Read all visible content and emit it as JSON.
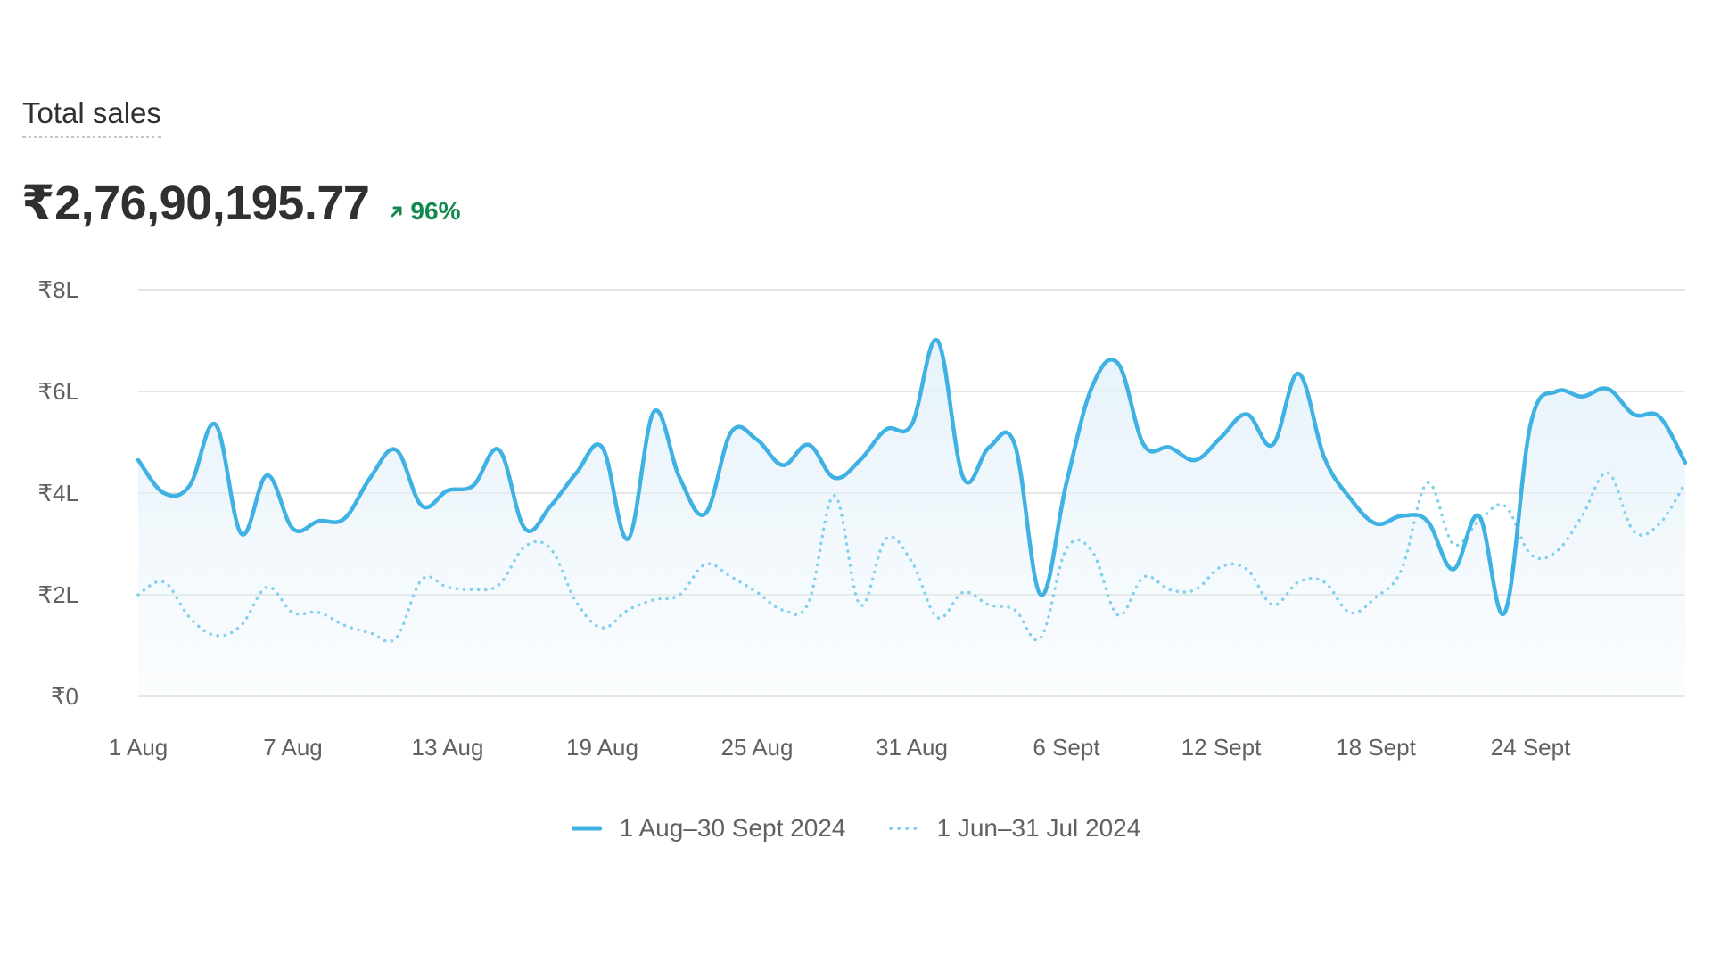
{
  "header": {
    "title": "Total sales",
    "total_value": "₹2,76,90,195.77",
    "change_pct": "96%",
    "change_direction_icon": "arrow-up-right-icon"
  },
  "colors": {
    "current": "#3fb1e3",
    "previous": "#82d0ee",
    "positive": "#12894e",
    "grid": "#e6e6e6",
    "fill_top": "#e4f1fa"
  },
  "chart_data": {
    "type": "line",
    "title": "Total sales",
    "xlabel": "",
    "ylabel": "",
    "ylim": [
      0,
      800000
    ],
    "y_ticks": [
      {
        "value": 0,
        "label": "₹0"
      },
      {
        "value": 200000,
        "label": "₹2L"
      },
      {
        "value": 400000,
        "label": "₹4L"
      },
      {
        "value": 600000,
        "label": "₹6L"
      },
      {
        "value": 800000,
        "label": "₹8L"
      }
    ],
    "x_ticks": [
      {
        "day": 0,
        "label": "1 Aug"
      },
      {
        "day": 6,
        "label": "7 Aug"
      },
      {
        "day": 12,
        "label": "13 Aug"
      },
      {
        "day": 18,
        "label": "19 Aug"
      },
      {
        "day": 24,
        "label": "25 Aug"
      },
      {
        "day": 30,
        "label": "31 Aug"
      },
      {
        "day": 36,
        "label": "6 Sept"
      },
      {
        "day": 42,
        "label": "12 Sept"
      },
      {
        "day": 48,
        "label": "18 Sept"
      },
      {
        "day": 54,
        "label": "24 Sept"
      }
    ],
    "x_count": 61,
    "legend_position": "bottom",
    "series": [
      {
        "name": "1 Aug–30 Sept 2024",
        "style": "solid",
        "values": [
          465000,
          400000,
          415000,
          535000,
          320000,
          435000,
          330000,
          345000,
          350000,
          430000,
          485000,
          375000,
          405000,
          415000,
          485000,
          330000,
          375000,
          440000,
          490000,
          310000,
          560000,
          430000,
          360000,
          520000,
          505000,
          455000,
          495000,
          430000,
          465000,
          525000,
          535000,
          700000,
          430000,
          490000,
          495000,
          200000,
          420000,
          610000,
          655000,
          495000,
          490000,
          465000,
          510000,
          555000,
          495000,
          635000,
          470000,
          390000,
          340000,
          355000,
          345000,
          250000,
          355000,
          165000,
          535000,
          600000,
          590000,
          605000,
          555000,
          550000,
          460000
        ]
      },
      {
        "name": "1 Jun–31 Jul 2024",
        "style": "dotted",
        "values": [
          200000,
          225000,
          155000,
          120000,
          140000,
          215000,
          165000,
          165000,
          140000,
          125000,
          115000,
          230000,
          215000,
          210000,
          220000,
          295000,
          290000,
          185000,
          135000,
          170000,
          190000,
          200000,
          260000,
          235000,
          205000,
          170000,
          185000,
          395000,
          180000,
          310000,
          265000,
          155000,
          205000,
          180000,
          170000,
          115000,
          290000,
          285000,
          160000,
          235000,
          210000,
          210000,
          255000,
          250000,
          180000,
          225000,
          225000,
          165000,
          195000,
          250000,
          420000,
          300000,
          345000,
          375000,
          280000,
          285000,
          355000,
          440000,
          325000,
          340000,
          420000
        ]
      }
    ]
  }
}
